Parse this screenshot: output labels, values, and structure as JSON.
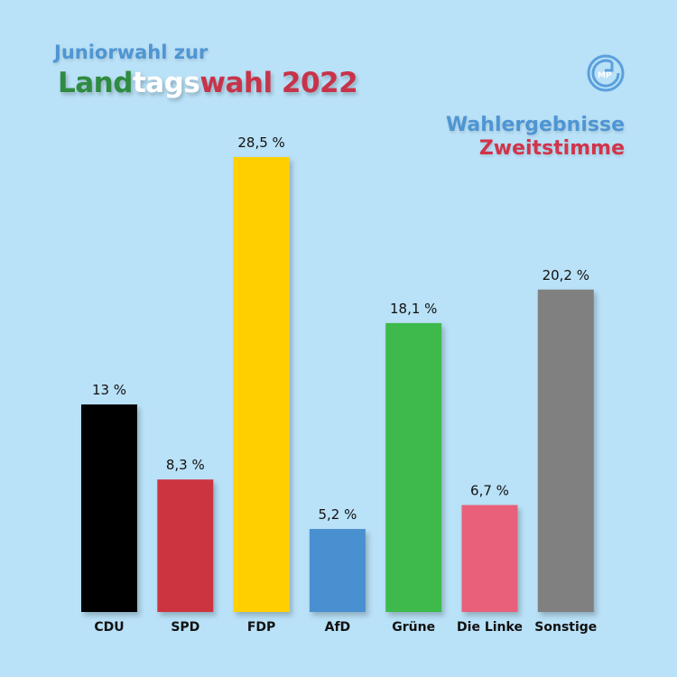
{
  "header": {
    "title_line1": "Juniorwahl zur",
    "title_line2_part1": "Land",
    "title_line2_part2": "tags",
    "title_line2_part3": "wahl 2022",
    "subtitle_line1": "Wahlergebnisse",
    "subtitle_line2": "Zweitstimme",
    "logo_icon": "gmp-school-logo-icon"
  },
  "chart_data": {
    "type": "bar",
    "categories": [
      "CDU",
      "SPD",
      "FDP",
      "AfD",
      "Grüne",
      "Die Linke",
      "Sonstige"
    ],
    "values": [
      13,
      8.3,
      28.5,
      5.2,
      18.1,
      6.7,
      20.2
    ],
    "value_labels": [
      "13 %",
      "8,3 %",
      "28,5 %",
      "5,2 %",
      "18,1 %",
      "6,7 %",
      "20,2 %"
    ],
    "colors": [
      "#000000",
      "#cc3440",
      "#ffcf00",
      "#4a90d0",
      "#3cba4b",
      "#e8607a",
      "#808080"
    ],
    "title": "Landtagswahl 2022",
    "subtitle": "Wahlergebnisse Zweitstimme",
    "xlabel": "",
    "ylabel": "",
    "ylim": [
      0,
      28.5
    ],
    "grid": false,
    "legend": "none"
  }
}
